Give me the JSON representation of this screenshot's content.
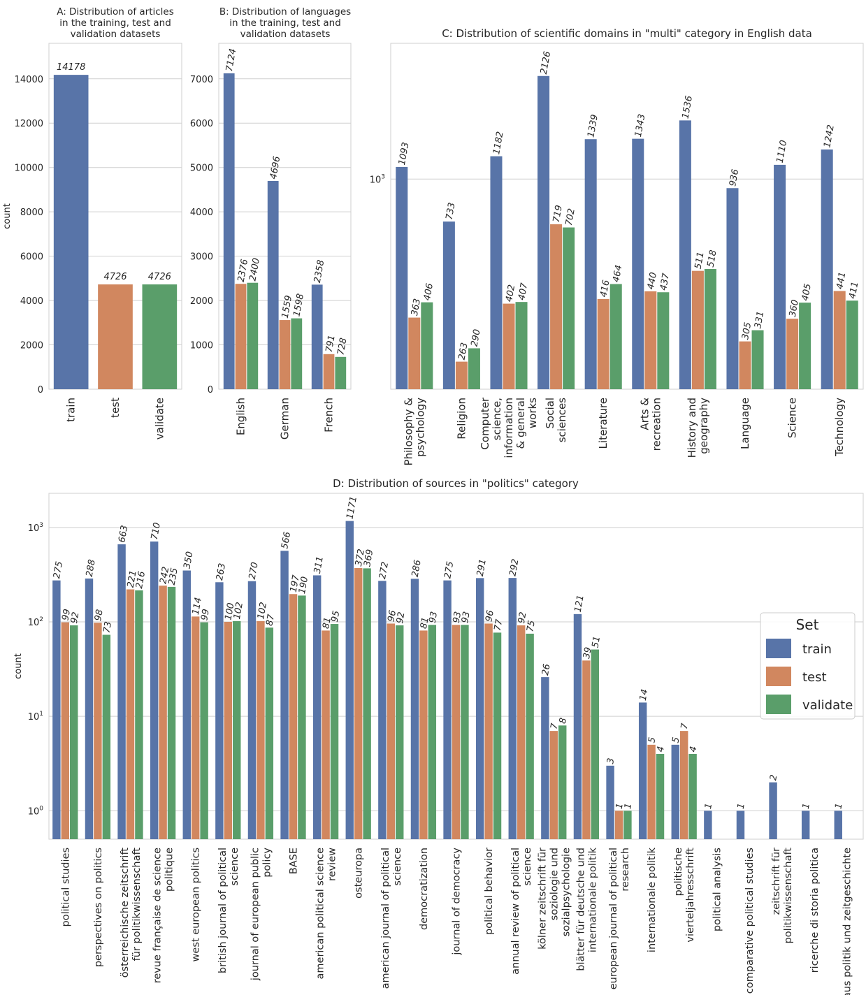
{
  "colors": {
    "train": "#5874a8",
    "test": "#d1875f",
    "validate": "#5a9e6a"
  },
  "legend": {
    "title": "Set",
    "entries": [
      "train",
      "test",
      "validate"
    ]
  },
  "chart_data": [
    {
      "id": "A",
      "type": "bar",
      "title": "A:    Distribution of articles\nin the training, test and\nvalidation datasets",
      "ylabel": "count",
      "ylim": [
        0,
        15600
      ],
      "yticks": [
        0,
        2000,
        4000,
        6000,
        8000,
        10000,
        12000,
        14000
      ],
      "categories": [
        "train",
        "test",
        "validate"
      ],
      "values": [
        14178,
        4726,
        4726
      ],
      "labels": [
        "14178",
        "4726",
        "4726"
      ]
    },
    {
      "id": "B",
      "type": "bar",
      "title": "B:   Distribution of languages\nin the training, test and\nvalidation datasets",
      "ylim": [
        0,
        7800
      ],
      "yticks": [
        0,
        1000,
        2000,
        3000,
        4000,
        5000,
        6000,
        7000
      ],
      "categories": [
        "English",
        "German",
        "French"
      ],
      "series": [
        {
          "name": "train",
          "values": [
            7124,
            4696,
            2358
          ]
        },
        {
          "name": "test",
          "values": [
            2376,
            1559,
            791
          ]
        },
        {
          "name": "validate",
          "values": [
            2400,
            1598,
            728
          ]
        }
      ]
    },
    {
      "id": "C",
      "type": "bar",
      "scale": "log",
      "title": "C: Distribution of scientific domains in \"multi\" category in English data",
      "ylim": [
        215,
        2700
      ],
      "yticks": [
        1000
      ],
      "ytick_labels": [
        "10^3"
      ],
      "categories": [
        "Philosophy &\npsychology",
        "Religion",
        "Computer\nscience,\ninformation\n& general\nworks",
        "Social\nsciences",
        "Literature",
        "Arts &\nrecreation",
        "History and\ngeography",
        "Language",
        "Science",
        "Technology"
      ],
      "series": [
        {
          "name": "train",
          "values": [
            1093,
            733,
            1182,
            2126,
            1339,
            1343,
            1536,
            936,
            1110,
            1242
          ]
        },
        {
          "name": "test",
          "values": [
            363,
            263,
            402,
            719,
            416,
            440,
            511,
            305,
            360,
            441
          ]
        },
        {
          "name": "validate",
          "values": [
            406,
            290,
            407,
            702,
            464,
            437,
            518,
            331,
            405,
            411
          ]
        }
      ]
    },
    {
      "id": "D",
      "type": "bar",
      "scale": "log",
      "title": "D: Distribution of sources in \"politics\" category",
      "ylabel": "count",
      "ylim": [
        0.5,
        2300
      ],
      "yticks": [
        1,
        10,
        100,
        1000
      ],
      "ytick_labels": [
        "10^0",
        "10^1",
        "10^2",
        "10^3"
      ],
      "categories": [
        "political studies",
        "perspectives on politics",
        "österreichische zeitschrift\nfür politikwissenschaft",
        "revue française de science\npolitique",
        "west european politics",
        "british journal of political\nscience",
        "journal of european public\npolicy",
        "BASE",
        "american political science\nreview",
        "osteuropa",
        "american journal of political\nscience",
        "democratization",
        "journal of democracy",
        "political behavior",
        "annual review of political\nscience",
        "kölner zeitschrift für\nsoziologie und\nsozialpsychologie",
        "blätter für deutsche und\ninternationale politik",
        "european journal of political\nresearch",
        "internationale politik",
        "politische\nvierteljahresschrift",
        "political analysis",
        "comparative political studies",
        "zeitschrift für\npolitikwissenschaft",
        "ricerche di storia politica",
        "aus politik und zeitgeschichte"
      ],
      "series": [
        {
          "name": "train",
          "values": [
            275,
            288,
            663,
            710,
            350,
            263,
            270,
            566,
            311,
            1171,
            272,
            286,
            275,
            291,
            292,
            26,
            121,
            3,
            14,
            5,
            1,
            1,
            2,
            1,
            1
          ]
        },
        {
          "name": "test",
          "values": [
            99,
            98,
            221,
            242,
            114,
            100,
            102,
            197,
            81,
            372,
            96,
            81,
            93,
            96,
            92,
            7,
            39,
            1,
            5,
            7,
            null,
            null,
            null,
            null,
            null
          ]
        },
        {
          "name": "validate",
          "values": [
            92,
            73,
            216,
            235,
            99,
            102,
            87,
            190,
            95,
            369,
            92,
            93,
            93,
            77,
            75,
            8,
            51,
            1,
            4,
            4,
            null,
            null,
            null,
            null,
            null
          ]
        }
      ]
    }
  ]
}
